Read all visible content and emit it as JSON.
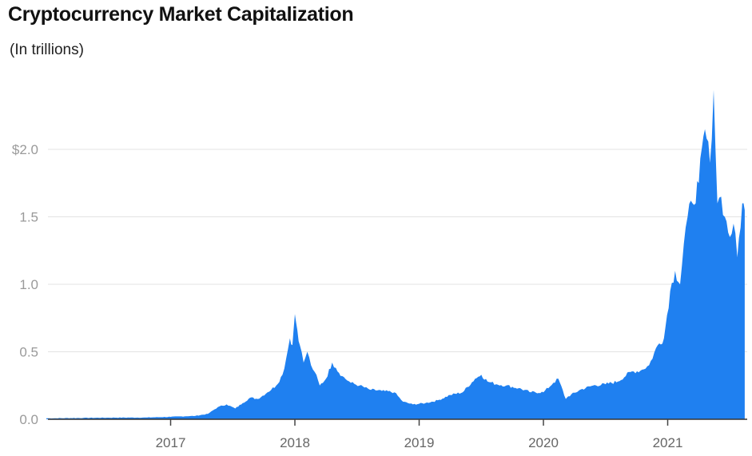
{
  "chart_data": {
    "type": "area",
    "title": "Cryptocurrency Market Capitalization",
    "subtitle": "(In trillions)",
    "xlabel": "",
    "ylabel": "",
    "ylim": [
      0,
      2.5
    ],
    "yticks": [
      {
        "value": 0.0,
        "label": "0.0"
      },
      {
        "value": 0.5,
        "label": "0.5"
      },
      {
        "value": 1.0,
        "label": "1.0"
      },
      {
        "value": 1.5,
        "label": "1.5"
      },
      {
        "value": 2.0,
        "label": "$2.0"
      }
    ],
    "xticks": [
      {
        "value": 2017,
        "label": "2017"
      },
      {
        "value": 2018,
        "label": "2018"
      },
      {
        "value": 2019,
        "label": "2019"
      },
      {
        "value": 2020,
        "label": "2020"
      },
      {
        "value": 2021,
        "label": "2021"
      }
    ],
    "xlim": [
      2016.0,
      2021.7
    ],
    "grid": true,
    "legend": null,
    "color": "#1F80F0",
    "x": [
      2016.0,
      2016.3,
      2016.5,
      2016.8,
      2017.0,
      2017.2,
      2017.3,
      2017.38,
      2017.45,
      2017.52,
      2017.58,
      2017.64,
      2017.7,
      2017.78,
      2017.85,
      2017.9,
      2017.93,
      2017.96,
      2017.98,
      2018.0,
      2018.02,
      2018.04,
      2018.07,
      2018.1,
      2018.13,
      2018.16,
      2018.2,
      2018.25,
      2018.3,
      2018.33,
      2018.38,
      2018.45,
      2018.52,
      2018.6,
      2018.7,
      2018.8,
      2018.87,
      2018.95,
      2019.05,
      2019.15,
      2019.25,
      2019.35,
      2019.45,
      2019.5,
      2019.55,
      2019.62,
      2019.7,
      2019.8,
      2019.9,
      2020.0,
      2020.08,
      2020.12,
      2020.18,
      2020.2,
      2020.3,
      2020.4,
      2020.5,
      2020.6,
      2020.7,
      2020.78,
      2020.85,
      2020.92,
      2020.97,
      2021.02,
      2021.06,
      2021.1,
      2021.13,
      2021.16,
      2021.2,
      2021.25,
      2021.3,
      2021.34,
      2021.37,
      2021.4,
      2021.43,
      2021.46,
      2021.5,
      2021.53,
      2021.56,
      2021.6,
      2021.62
    ],
    "values": [
      0.007,
      0.01,
      0.012,
      0.013,
      0.018,
      0.025,
      0.04,
      0.09,
      0.11,
      0.08,
      0.12,
      0.16,
      0.15,
      0.2,
      0.25,
      0.33,
      0.45,
      0.6,
      0.55,
      0.78,
      0.66,
      0.55,
      0.42,
      0.5,
      0.4,
      0.35,
      0.25,
      0.3,
      0.42,
      0.38,
      0.32,
      0.27,
      0.25,
      0.22,
      0.21,
      0.2,
      0.13,
      0.11,
      0.12,
      0.14,
      0.18,
      0.2,
      0.3,
      0.33,
      0.28,
      0.26,
      0.25,
      0.23,
      0.2,
      0.2,
      0.27,
      0.3,
      0.15,
      0.17,
      0.22,
      0.25,
      0.26,
      0.28,
      0.35,
      0.36,
      0.4,
      0.55,
      0.6,
      0.95,
      1.1,
      1.0,
      1.3,
      1.5,
      1.6,
      1.75,
      2.15,
      1.9,
      2.44,
      1.6,
      1.65,
      1.5,
      1.35,
      1.45,
      1.2,
      1.6,
      1.55
    ]
  }
}
